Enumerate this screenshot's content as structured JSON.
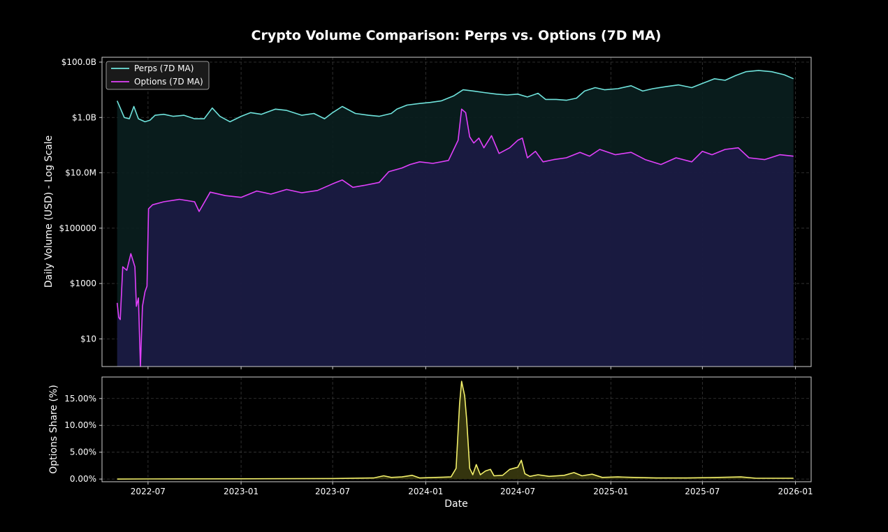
{
  "chart_data": [
    {
      "type": "line",
      "title": "Crypto Volume Comparison: Perps vs. Options (7D MA)",
      "ylabel": "Daily Volume (USD) - Log Scale",
      "xlabel": "",
      "yscale": "log",
      "ylim": [
        1,
        150000000000
      ],
      "xlim": [
        "2022-04-01",
        "2026-02-01"
      ],
      "grid": true,
      "legend_position": "top-left",
      "y_ticks": [
        {
          "value": 10,
          "label": "$10"
        },
        {
          "value": 1000,
          "label": "$1000"
        },
        {
          "value": 100000,
          "label": "$100000"
        },
        {
          "value": 10000000,
          "label": "$10.0M"
        },
        {
          "value": 1000000000,
          "label": "$1.0B"
        },
        {
          "value": 100000000000,
          "label": "$100.0B"
        }
      ],
      "x_ticks": [
        "2022-07",
        "2023-01",
        "2023-07",
        "2024-01",
        "2024-07",
        "2025-01",
        "2025-07",
        "2026-01"
      ],
      "series": [
        {
          "name": "Perps (7D MA)",
          "color": "#6fe3dc",
          "fill": "#0a1f1f",
          "points": [
            [
              "2022-05-01",
              4000000000
            ],
            [
              "2022-05-08",
              2000000000
            ],
            [
              "2022-05-15",
              1000000000
            ],
            [
              "2022-05-25",
              900000000
            ],
            [
              "2022-06-03",
              2500000000
            ],
            [
              "2022-06-12",
              900000000
            ],
            [
              "2022-06-25",
              700000000
            ],
            [
              "2022-07-05",
              800000000
            ],
            [
              "2022-07-15",
              1200000000
            ],
            [
              "2022-08-01",
              1300000000
            ],
            [
              "2022-08-20",
              1100000000
            ],
            [
              "2022-09-10",
              1200000000
            ],
            [
              "2022-10-01",
              900000000
            ],
            [
              "2022-10-20",
              900000000
            ],
            [
              "2022-11-05",
              2200000000
            ],
            [
              "2022-11-20",
              1100000000
            ],
            [
              "2022-12-10",
              700000000
            ],
            [
              "2023-01-01",
              1100000000
            ],
            [
              "2023-01-20",
              1500000000
            ],
            [
              "2023-02-10",
              1300000000
            ],
            [
              "2023-03-10",
              2000000000
            ],
            [
              "2023-04-01",
              1800000000
            ],
            [
              "2023-05-01",
              1200000000
            ],
            [
              "2023-05-25",
              1400000000
            ],
            [
              "2023-06-15",
              900000000
            ],
            [
              "2023-07-01",
              1500000000
            ],
            [
              "2023-07-20",
              2500000000
            ],
            [
              "2023-08-15",
              1400000000
            ],
            [
              "2023-09-10",
              1200000000
            ],
            [
              "2023-10-01",
              1100000000
            ],
            [
              "2023-10-25",
              1400000000
            ],
            [
              "2023-11-05",
              2000000000
            ],
            [
              "2023-11-25",
              2800000000
            ],
            [
              "2023-12-20",
              3200000000
            ],
            [
              "2024-01-10",
              3500000000
            ],
            [
              "2024-02-01",
              4000000000
            ],
            [
              "2024-02-25",
              6000000000
            ],
            [
              "2024-03-15",
              10000000000
            ],
            [
              "2024-04-05",
              9000000000
            ],
            [
              "2024-04-25",
              8000000000
            ],
            [
              "2024-05-20",
              7000000000
            ],
            [
              "2024-06-10",
              6500000000
            ],
            [
              "2024-07-01",
              7000000000
            ],
            [
              "2024-07-20",
              5500000000
            ],
            [
              "2024-08-10",
              7500000000
            ],
            [
              "2024-08-25",
              4500000000
            ],
            [
              "2024-09-15",
              4500000000
            ],
            [
              "2024-10-05",
              4200000000
            ],
            [
              "2024-10-25",
              5000000000
            ],
            [
              "2024-11-10",
              9000000000
            ],
            [
              "2024-12-01",
              12000000000
            ],
            [
              "2024-12-20",
              10000000000
            ],
            [
              "2025-01-15",
              11000000000
            ],
            [
              "2025-02-10",
              14000000000
            ],
            [
              "2025-03-05",
              9000000000
            ],
            [
              "2025-03-25",
              11000000000
            ],
            [
              "2025-04-20",
              13000000000
            ],
            [
              "2025-05-15",
              15000000000
            ],
            [
              "2025-06-10",
              12000000000
            ],
            [
              "2025-07-01",
              17000000000
            ],
            [
              "2025-07-25",
              25000000000
            ],
            [
              "2025-08-15",
              22000000000
            ],
            [
              "2025-09-05",
              33000000000
            ],
            [
              "2025-09-25",
              45000000000
            ],
            [
              "2025-10-20",
              50000000000
            ],
            [
              "2025-11-15",
              45000000000
            ],
            [
              "2025-12-10",
              35000000000
            ],
            [
              "2025-12-28",
              25000000000
            ]
          ]
        },
        {
          "name": "Options (7D MA)",
          "color": "#e040fb",
          "fill": "#1c1b45",
          "points": [
            [
              "2022-05-01",
              200
            ],
            [
              "2022-05-04",
              60
            ],
            [
              "2022-05-07",
              50
            ],
            [
              "2022-05-12",
              4000
            ],
            [
              "2022-05-20",
              3000
            ],
            [
              "2022-05-28",
              12000
            ],
            [
              "2022-06-05",
              4000
            ],
            [
              "2022-06-08",
              150
            ],
            [
              "2022-06-12",
              300
            ],
            [
              "2022-06-16",
              1
            ],
            [
              "2022-06-20",
              150
            ],
            [
              "2022-06-25",
              500
            ],
            [
              "2022-06-29",
              800
            ],
            [
              "2022-07-02",
              500000
            ],
            [
              "2022-07-10",
              700000
            ],
            [
              "2022-08-01",
              900000
            ],
            [
              "2022-09-01",
              1100000
            ],
            [
              "2022-10-01",
              900000
            ],
            [
              "2022-10-10",
              400000
            ],
            [
              "2022-11-01",
              2000000
            ],
            [
              "2022-12-01",
              1500000
            ],
            [
              "2023-01-01",
              1300000
            ],
            [
              "2023-02-01",
              2200000
            ],
            [
              "2023-03-01",
              1700000
            ],
            [
              "2023-04-01",
              2500000
            ],
            [
              "2023-05-01",
              1900000
            ],
            [
              "2023-06-01",
              2300000
            ],
            [
              "2023-07-01",
              4000000
            ],
            [
              "2023-07-20",
              5500000
            ],
            [
              "2023-08-10",
              3000000
            ],
            [
              "2023-09-01",
              3500000
            ],
            [
              "2023-10-01",
              4500000
            ],
            [
              "2023-10-20",
              11000000
            ],
            [
              "2023-11-15",
              15000000
            ],
            [
              "2023-12-01",
              20000000
            ],
            [
              "2023-12-20",
              25000000
            ],
            [
              "2024-01-15",
              22000000
            ],
            [
              "2024-02-15",
              28000000
            ],
            [
              "2024-03-05",
              150000000
            ],
            [
              "2024-03-12",
              2000000000
            ],
            [
              "2024-03-20",
              1500000000
            ],
            [
              "2024-03-28",
              200000000
            ],
            [
              "2024-04-05",
              120000000
            ],
            [
              "2024-04-15",
              180000000
            ],
            [
              "2024-04-25",
              80000000
            ],
            [
              "2024-05-10",
              220000000
            ],
            [
              "2024-05-25",
              50000000
            ],
            [
              "2024-06-15",
              80000000
            ],
            [
              "2024-07-01",
              150000000
            ],
            [
              "2024-07-10",
              180000000
            ],
            [
              "2024-07-20",
              35000000
            ],
            [
              "2024-08-05",
              60000000
            ],
            [
              "2024-08-20",
              25000000
            ],
            [
              "2024-09-10",
              30000000
            ],
            [
              "2024-10-05",
              35000000
            ],
            [
              "2024-11-01",
              55000000
            ],
            [
              "2024-11-20",
              40000000
            ],
            [
              "2024-12-10",
              70000000
            ],
            [
              "2025-01-10",
              45000000
            ],
            [
              "2025-02-10",
              55000000
            ],
            [
              "2025-03-10",
              30000000
            ],
            [
              "2025-04-10",
              20000000
            ],
            [
              "2025-05-10",
              35000000
            ],
            [
              "2025-06-10",
              25000000
            ],
            [
              "2025-07-01",
              60000000
            ],
            [
              "2025-07-20",
              45000000
            ],
            [
              "2025-08-15",
              70000000
            ],
            [
              "2025-09-10",
              80000000
            ],
            [
              "2025-10-01",
              35000000
            ],
            [
              "2025-11-01",
              30000000
            ],
            [
              "2025-12-01",
              45000000
            ],
            [
              "2025-12-28",
              40000000
            ]
          ]
        }
      ]
    },
    {
      "type": "area",
      "title": "",
      "xlabel": "Date",
      "ylabel": "Options Share (%)",
      "ylim": [
        -0.5,
        19
      ],
      "xlim": [
        "2022-04-01",
        "2026-02-01"
      ],
      "grid": true,
      "y_ticks": [
        {
          "value": 0,
          "label": "0.00%"
        },
        {
          "value": 5,
          "label": "5.00%"
        },
        {
          "value": 10,
          "label": "10.00%"
        },
        {
          "value": 15,
          "label": "15.00%"
        }
      ],
      "x_ticks": [
        {
          "date": "2022-07-01",
          "label": "2022-07"
        },
        {
          "date": "2023-01-01",
          "label": "2023-01"
        },
        {
          "date": "2023-07-01",
          "label": "2023-07"
        },
        {
          "date": "2024-01-01",
          "label": "2024-01"
        },
        {
          "date": "2024-07-01",
          "label": "2024-07"
        },
        {
          "date": "2025-01-01",
          "label": "2025-01"
        },
        {
          "date": "2025-07-01",
          "label": "2025-07"
        },
        {
          "date": "2026-01-01",
          "label": "2026-01"
        }
      ],
      "series": [
        {
          "name": "",
          "color": "#f3f06a",
          "fill": "#3a3a10",
          "points": [
            [
              "2022-05-01",
              0.0
            ],
            [
              "2022-07-01",
              0.02
            ],
            [
              "2023-01-01",
              0.05
            ],
            [
              "2023-07-01",
              0.1
            ],
            [
              "2023-09-20",
              0.2
            ],
            [
              "2023-10-10",
              0.6
            ],
            [
              "2023-10-25",
              0.3
            ],
            [
              "2023-11-15",
              0.4
            ],
            [
              "2023-12-05",
              0.7
            ],
            [
              "2023-12-20",
              0.2
            ],
            [
              "2024-01-20",
              0.3
            ],
            [
              "2024-02-20",
              0.4
            ],
            [
              "2024-03-01",
              2.0
            ],
            [
              "2024-03-08",
              14.0
            ],
            [
              "2024-03-12",
              18.2
            ],
            [
              "2024-03-18",
              15.5
            ],
            [
              "2024-03-22",
              11.0
            ],
            [
              "2024-03-28",
              2.0
            ],
            [
              "2024-04-03",
              0.8
            ],
            [
              "2024-04-10",
              2.7
            ],
            [
              "2024-04-18",
              0.8
            ],
            [
              "2024-04-28",
              1.5
            ],
            [
              "2024-05-08",
              1.8
            ],
            [
              "2024-05-15",
              0.6
            ],
            [
              "2024-06-01",
              0.7
            ],
            [
              "2024-06-15",
              1.8
            ],
            [
              "2024-07-01",
              2.2
            ],
            [
              "2024-07-08",
              3.5
            ],
            [
              "2024-07-15",
              1.0
            ],
            [
              "2024-07-25",
              0.5
            ],
            [
              "2024-08-10",
              0.8
            ],
            [
              "2024-09-01",
              0.5
            ],
            [
              "2024-10-01",
              0.7
            ],
            [
              "2024-10-20",
              1.2
            ],
            [
              "2024-11-05",
              0.6
            ],
            [
              "2024-11-25",
              0.9
            ],
            [
              "2024-12-15",
              0.3
            ],
            [
              "2025-01-15",
              0.4
            ],
            [
              "2025-02-15",
              0.3
            ],
            [
              "2025-04-01",
              0.2
            ],
            [
              "2025-06-01",
              0.2
            ],
            [
              "2025-08-01",
              0.3
            ],
            [
              "2025-09-15",
              0.4
            ],
            [
              "2025-10-15",
              0.15
            ],
            [
              "2025-12-28",
              0.15
            ]
          ]
        }
      ]
    }
  ]
}
